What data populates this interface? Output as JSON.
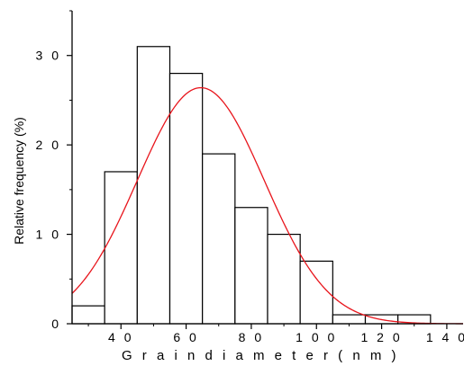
{
  "chart_data": {
    "type": "bar",
    "title": "",
    "xlabel": "G r a i n   d i a m e t e r   ( n m )",
    "ylabel": "Relative frequency (%)",
    "xlim": [
      25,
      145
    ],
    "ylim": [
      0,
      35
    ],
    "x_ticks": [
      40,
      60,
      80,
      100,
      120,
      140
    ],
    "x_tick_labels": [
      "4 0",
      "6 0",
      "8 0",
      "1 0 0",
      "1 2 0",
      "1 4 0"
    ],
    "y_ticks": [
      0,
      10,
      20,
      30
    ],
    "y_tick_labels": [
      "0",
      "1 0",
      "2 0",
      "3 0"
    ],
    "bin_width": 10,
    "bin_centers": [
      30,
      40,
      50,
      60,
      70,
      80,
      90,
      100,
      110,
      120,
      130
    ],
    "values": [
      2,
      17,
      31,
      28,
      19,
      13,
      10,
      7,
      1,
      1,
      1
    ],
    "fit_curve": {
      "type": "gaussian",
      "amplitude": 26.4,
      "mean": 64.5,
      "sigma": 19.5,
      "color": "#e8151c"
    },
    "grid": false,
    "bar_fill": "#ffffff",
    "bar_stroke": "#000000"
  }
}
